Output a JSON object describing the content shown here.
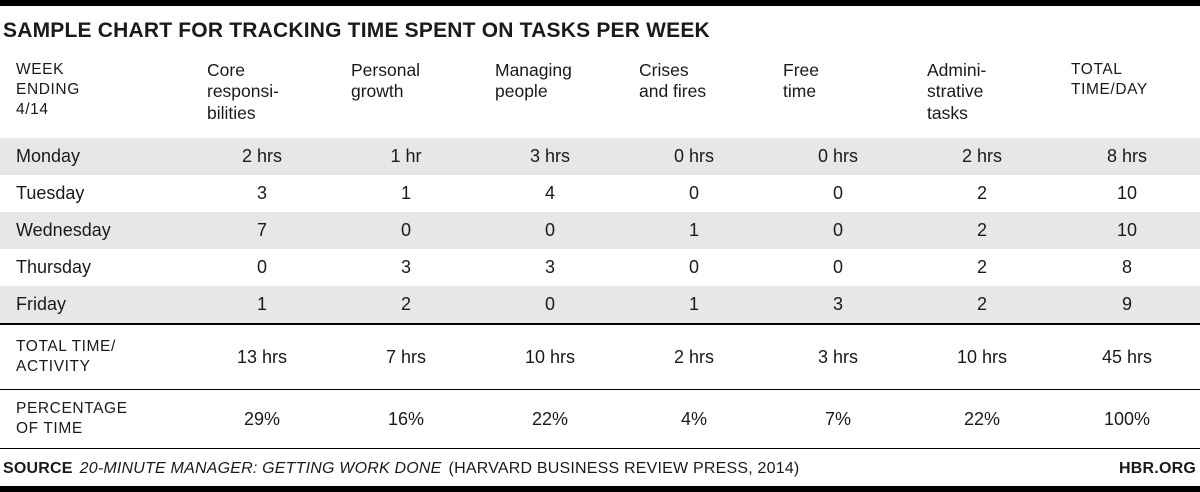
{
  "title": "SAMPLE CHART FOR TRACKING TIME SPENT ON TASKS PER WEEK",
  "chart_data": {
    "type": "table",
    "columns": [
      "WEEK\nENDING\n4/14",
      "Core\nresponsi-\nbilities",
      "Personal\ngrowth",
      "Managing\npeople",
      "Crises\nand fires",
      "Free\ntime",
      "Admini-\nstrative\ntasks",
      "TOTAL\nTIME/DAY"
    ],
    "rows": [
      {
        "label": "Monday",
        "values": [
          "2 hrs",
          "1 hr",
          "3 hrs",
          "0 hrs",
          "0 hrs",
          "2 hrs",
          "8 hrs"
        ]
      },
      {
        "label": "Tuesday",
        "values": [
          "3",
          "1",
          "4",
          "0",
          "0",
          "2",
          "10"
        ]
      },
      {
        "label": "Wednesday",
        "values": [
          "7",
          "0",
          "0",
          "1",
          "0",
          "2",
          "10"
        ]
      },
      {
        "label": "Thursday",
        "values": [
          "0",
          "3",
          "3",
          "0",
          "0",
          "2",
          "8"
        ]
      },
      {
        "label": "Friday",
        "values": [
          "1",
          "2",
          "0",
          "1",
          "3",
          "2",
          "9"
        ]
      }
    ],
    "totals_row": {
      "label": "TOTAL TIME/\nACTIVITY",
      "values": [
        "13 hrs",
        "7 hrs",
        "10 hrs",
        "2 hrs",
        "3 hrs",
        "10 hrs",
        "45 hrs"
      ]
    },
    "percentage_row": {
      "label": "PERCENTAGE\nOF TIME",
      "values": [
        "29%",
        "16%",
        "22%",
        "4%",
        "7%",
        "22%",
        "100%"
      ]
    }
  },
  "footer": {
    "source_label": "SOURCE",
    "source_title": "20-MINUTE MANAGER: GETTING WORK DONE",
    "source_publisher": "(HARVARD BUSINESS REVIEW PRESS, 2014)",
    "site": "HBR.ORG"
  },
  "colors": {
    "stripe": "#e7e7e7",
    "rule": "#000000",
    "text": "#1a1a1a"
  }
}
